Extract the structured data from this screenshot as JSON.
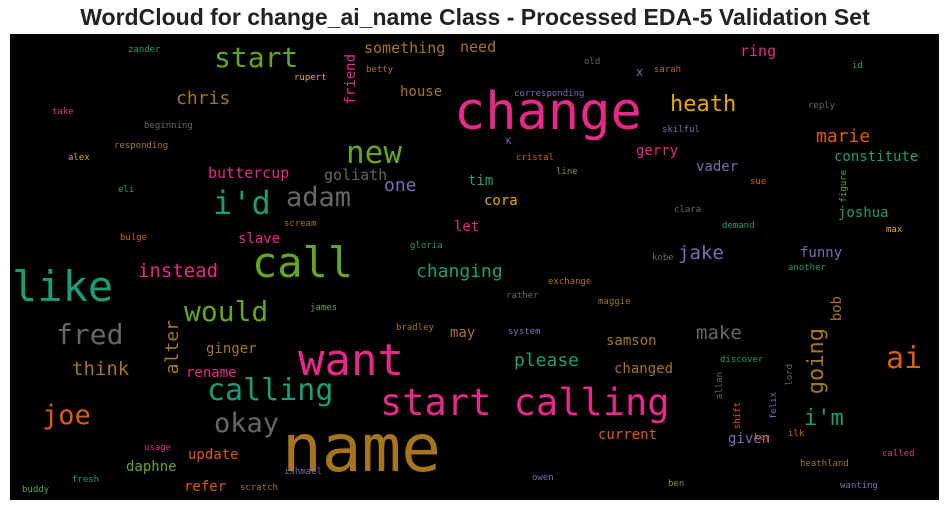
{
  "title": "WordCloud for change_ai_name Class - Processed EDA-5 Validation Set",
  "chart_data": {
    "type": "wordcloud",
    "background": "#000000",
    "words": [
      {
        "text": "name",
        "color": "#a6761d"
      },
      {
        "text": "change",
        "color": "#e7298a"
      },
      {
        "text": "want",
        "color": "#e7298a"
      },
      {
        "text": "start calling",
        "color": "#e7298a"
      },
      {
        "text": "call",
        "color": "#66a61e"
      },
      {
        "text": "like",
        "color": "#1b9e77"
      },
      {
        "text": "calling",
        "color": "#1b9e77"
      },
      {
        "text": "i'd",
        "color": "#1b9e77"
      },
      {
        "text": "new",
        "color": "#66a61e"
      },
      {
        "text": "adam",
        "color": "#666666"
      },
      {
        "text": "would",
        "color": "#66a61e"
      },
      {
        "text": "start",
        "color": "#66a61e"
      },
      {
        "text": "fred",
        "color": "#666666"
      },
      {
        "text": "joe",
        "color": "#d95f02"
      },
      {
        "text": "okay",
        "color": "#666666"
      },
      {
        "text": "ai",
        "color": "#d95f02"
      },
      {
        "text": "heath",
        "color": "#e6ab02"
      },
      {
        "text": "i'm",
        "color": "#1b9e77"
      },
      {
        "text": "going",
        "color": "#a6761d"
      },
      {
        "text": "jake",
        "color": "#7570b3"
      },
      {
        "text": "instead",
        "color": "#e7298a"
      },
      {
        "text": "changing",
        "color": "#1b9e77"
      },
      {
        "text": "think",
        "color": "#a6761d"
      },
      {
        "text": "alter",
        "color": "#a6761d"
      },
      {
        "text": "make",
        "color": "#666666"
      },
      {
        "text": "please",
        "color": "#1b9e77"
      },
      {
        "text": "chris",
        "color": "#a6761d"
      },
      {
        "text": "one",
        "color": "#7570b3"
      },
      {
        "text": "marie",
        "color": "#d95f02"
      },
      {
        "text": "goliath",
        "color": "#666666"
      },
      {
        "text": "buttercup",
        "color": "#e7298a"
      },
      {
        "text": "something",
        "color": "#a6761d"
      },
      {
        "text": "need",
        "color": "#a6761d"
      },
      {
        "text": "ring",
        "color": "#e7298a"
      },
      {
        "text": "house",
        "color": "#a6761d"
      },
      {
        "text": "friend",
        "color": "#e7298a"
      },
      {
        "text": "constitute",
        "color": "#1b9e77"
      },
      {
        "text": "gerry",
        "color": "#e7298a"
      },
      {
        "text": "vader",
        "color": "#7570b3"
      },
      {
        "text": "tim",
        "color": "#1b9e77"
      },
      {
        "text": "cora",
        "color": "#e6ab02"
      },
      {
        "text": "joshua",
        "color": "#1b9e77"
      },
      {
        "text": "let",
        "color": "#e7298a"
      },
      {
        "text": "slave",
        "color": "#e7298a"
      },
      {
        "text": "funny",
        "color": "#7570b3"
      },
      {
        "text": "bob",
        "color": "#a6761d"
      },
      {
        "text": "samson",
        "color": "#a6761d"
      },
      {
        "text": "may",
        "color": "#a6761d"
      },
      {
        "text": "ginger",
        "color": "#a6761d"
      },
      {
        "text": "rename",
        "color": "#e7298a"
      },
      {
        "text": "changed",
        "color": "#a6761d"
      },
      {
        "text": "given",
        "color": "#7570b3"
      },
      {
        "text": "current",
        "color": "#d95f02"
      },
      {
        "text": "daphne",
        "color": "#66a61e"
      },
      {
        "text": "update",
        "color": "#d95f02"
      },
      {
        "text": "refer",
        "color": "#d95f02"
      },
      {
        "text": "zander",
        "color": "#1b9e77"
      },
      {
        "text": "rupert",
        "color": "#e6ab02"
      },
      {
        "text": "betty",
        "color": "#a6761d"
      },
      {
        "text": "old",
        "color": "#666666"
      },
      {
        "text": "sarah",
        "color": "#a6761d"
      },
      {
        "text": "id",
        "color": "#1b9e77"
      },
      {
        "text": "x",
        "color": "#7570b3"
      },
      {
        "text": "take",
        "color": "#e7298a"
      },
      {
        "text": "beginning",
        "color": "#666666"
      },
      {
        "text": "corresponding",
        "color": "#7570b3"
      },
      {
        "text": "reply",
        "color": "#666666"
      },
      {
        "text": "skilful",
        "color": "#7570b3"
      },
      {
        "text": "K",
        "color": "#7570b3"
      },
      {
        "text": "alex",
        "color": "#e6ab02"
      },
      {
        "text": "responding",
        "color": "#a6761d"
      },
      {
        "text": "cristal",
        "color": "#d95f02"
      },
      {
        "text": "line",
        "color": "#66a61e"
      },
      {
        "text": "sue",
        "color": "#d95f02"
      },
      {
        "text": "figure",
        "color": "#66a61e"
      },
      {
        "text": "eli",
        "color": "#1b9e77"
      },
      {
        "text": "scream",
        "color": "#a6761d"
      },
      {
        "text": "clara",
        "color": "#666666"
      },
      {
        "text": "demand",
        "color": "#1b9e77"
      },
      {
        "text": "max",
        "color": "#e6ab02"
      },
      {
        "text": "bulge",
        "color": "#d95f02"
      },
      {
        "text": "gloria",
        "color": "#1b9e77"
      },
      {
        "text": "kobe",
        "color": "#666666"
      },
      {
        "text": "another",
        "color": "#1b9e77"
      },
      {
        "text": "exchange",
        "color": "#a6761d"
      },
      {
        "text": "rather",
        "color": "#666666"
      },
      {
        "text": "maggie",
        "color": "#a6761d"
      },
      {
        "text": "james",
        "color": "#66a61e"
      },
      {
        "text": "bradley",
        "color": "#a6761d"
      },
      {
        "text": "system",
        "color": "#7570b3"
      },
      {
        "text": "discover",
        "color": "#1b9e77"
      },
      {
        "text": "allan",
        "color": "#666666"
      },
      {
        "text": "lord",
        "color": "#666666"
      },
      {
        "text": "shift",
        "color": "#d95f02"
      },
      {
        "text": "felix",
        "color": "#7570b3"
      },
      {
        "text": "ilk",
        "color": "#d95f02"
      },
      {
        "text": "key",
        "color": "#d95f02"
      },
      {
        "text": "usage",
        "color": "#e7298a"
      },
      {
        "text": "ishmael",
        "color": "#7570b3"
      },
      {
        "text": "called",
        "color": "#e7298a"
      },
      {
        "text": "heathland",
        "color": "#a6761d"
      },
      {
        "text": "fresh",
        "color": "#1b9e77"
      },
      {
        "text": "scratch",
        "color": "#a6761d"
      },
      {
        "text": "owen",
        "color": "#7570b3"
      },
      {
        "text": "ben",
        "color": "#66a61e"
      },
      {
        "text": "wanting",
        "color": "#7570b3"
      },
      {
        "text": "buddy",
        "color": "#66a61e"
      }
    ]
  }
}
